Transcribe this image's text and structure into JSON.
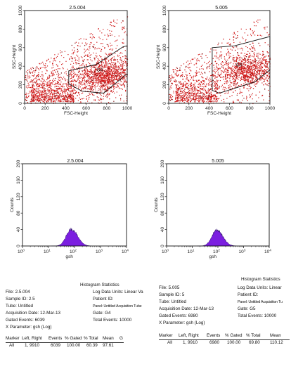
{
  "colors": {
    "dot": "#d21c1c",
    "dot_dark": "#7a0d0d",
    "hist_fill": "#7b1fe0",
    "gate": "#111111"
  },
  "chart_data": [
    {
      "type": "scatter",
      "title": "2.5.004",
      "xlabel": "FSC-Height",
      "ylabel": "SSC-Height",
      "xlim": [
        0,
        1000
      ],
      "ylim": [
        0,
        1000
      ],
      "xticks": [
        "0",
        "200",
        "400",
        "600",
        "800",
        "1000"
      ],
      "yticks": [
        "0",
        "200",
        "400",
        "600",
        "800",
        "1000"
      ],
      "gate_label": "G4",
      "gate": [
        [
          430,
          350
        ],
        [
          700,
          420
        ],
        [
          960,
          610
        ],
        [
          1000,
          620
        ],
        [
          1000,
          320
        ],
        [
          770,
          110
        ],
        [
          560,
          130
        ],
        [
          430,
          210
        ]
      ],
      "density_center": [
        780,
        300
      ]
    },
    {
      "type": "scatter",
      "title": "5.005",
      "xlabel": "FSC-Height",
      "ylabel": "SSC-Height",
      "xlim": [
        0,
        1000
      ],
      "ylim": [
        0,
        1000
      ],
      "xticks": [
        "0",
        "200",
        "400",
        "600",
        "800",
        "1000"
      ],
      "yticks": [
        "0",
        "200",
        "400",
        "600",
        "800",
        "1000"
      ],
      "gate_label": "G5",
      "gate": [
        [
          430,
          600
        ],
        [
          650,
          620
        ],
        [
          1000,
          720
        ],
        [
          1000,
          360
        ],
        [
          850,
          230
        ],
        [
          500,
          110
        ],
        [
          430,
          140
        ]
      ],
      "density_center": [
        780,
        360
      ]
    },
    {
      "type": "area",
      "title": "2.5.004",
      "xlabel": "gsh",
      "ylabel": "Counts",
      "xscale": "log",
      "xlim": [
        1,
        10000
      ],
      "ylim": [
        0,
        200
      ],
      "xticks": [
        "10^0",
        "10^1",
        "10^2",
        "10^3",
        "10^4"
      ],
      "yticks": [
        "0",
        "40",
        "80",
        "120",
        "160",
        "200"
      ],
      "peak_x": 75,
      "peak_y": 45,
      "spread_decades": 0.19
    },
    {
      "type": "area",
      "title": "5.005",
      "xlabel": "gsh",
      "ylabel": "Counts",
      "xscale": "log",
      "xlim": [
        1,
        10000
      ],
      "ylim": [
        0,
        200
      ],
      "xticks": [
        "10^0",
        "10^1",
        "10^2",
        "10^3",
        "10^4"
      ],
      "yticks": [
        "0",
        "40",
        "80",
        "120",
        "160",
        "200"
      ],
      "peak_x": 90,
      "peak_y": 42,
      "spread_decades": 0.19
    }
  ],
  "stats": [
    {
      "heading": "Histogram Statistics",
      "file": "File: 2.5.004",
      "sample": "Sample ID: 2.5",
      "tube": "Tube: Untitled",
      "acq": "Acquisition Date: 12-Mar-13",
      "gated": "Gated Events: 6039",
      "xparam": "X Parameter: gsh (Log)",
      "logunits": "Log Data Units: Linear Va",
      "patient": "Patient ID:",
      "panel": "Panel: Untitled Acquisition Tube",
      "gate": "Gate: G4",
      "total": "Total Events: 10000",
      "columns": [
        "Marker",
        "Left, Right",
        "Events",
        "% Gated",
        "% Total",
        "Mean",
        "G"
      ],
      "row": [
        "All",
        "1, 9910",
        "6039",
        "100.00",
        "60.39",
        "97.61",
        ""
      ]
    },
    {
      "heading": "Histogram Statistics",
      "file": "File: 5.005",
      "sample": "Sample ID: 5",
      "tube": "Tube: Untitled",
      "acq": "Acquisition Date: 12-Mar-13",
      "gated": "Gated Events: 6980",
      "xparam": "X Parameter: gsh (Log)",
      "logunits": "Log Data Units: Linear",
      "patient": "Patient ID:",
      "panel": "Panel: Untitled Acquisition Tu",
      "gate": "Gate: G5",
      "total": "Total Events: 10000",
      "columns": [
        "Marker",
        "Left, Right",
        "Events",
        "% Gated",
        "% Total",
        "Mean"
      ],
      "row": [
        "All",
        "1, 9910",
        "6980",
        "100.00",
        "69.80",
        "110.12"
      ]
    }
  ]
}
